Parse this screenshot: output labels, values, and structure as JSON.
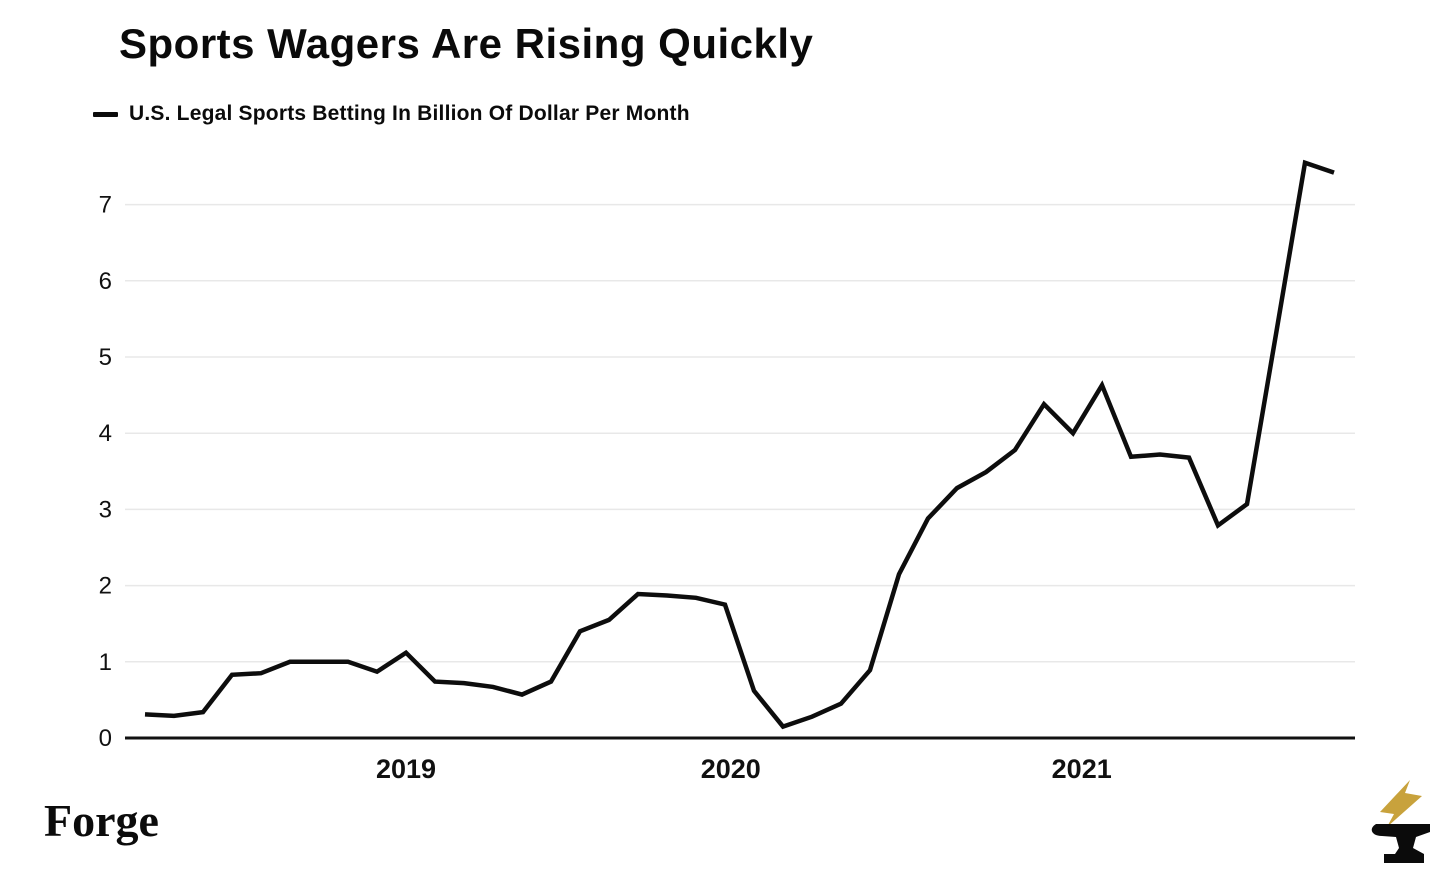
{
  "header": {
    "title": "Sports Wagers Are Rising Quickly",
    "legend": {
      "swatch_icon": "line-dash-swatch",
      "series_label": "U.S. Legal Sports Betting In Billion Of Dollar Per Month"
    }
  },
  "chart_data": {
    "type": "line",
    "title": "Sports Wagers Are Rising Quickly",
    "xlabel": "",
    "ylabel": "",
    "grid": "horizontal-only",
    "legend_position": "top-left",
    "ylim": [
      0,
      7.6
    ],
    "y_ticks": [
      0,
      1,
      2,
      3,
      4,
      5,
      6,
      7
    ],
    "x_ticks": [
      {
        "label": "2019",
        "month_index": 9.0
      },
      {
        "label": "2020",
        "month_index": 20.2
      },
      {
        "label": "2021",
        "month_index": 32.3
      }
    ],
    "x": [
      "2018-06",
      "2018-07",
      "2018-08",
      "2018-09",
      "2018-10",
      "2018-11",
      "2018-12",
      "2019-01",
      "2019-02",
      "2019-03",
      "2019-04",
      "2019-05",
      "2019-06",
      "2019-07",
      "2019-08",
      "2019-09",
      "2019-10",
      "2019-11",
      "2019-12",
      "2020-01",
      "2020-02",
      "2020-03",
      "2020-04",
      "2020-05",
      "2020-06",
      "2020-07",
      "2020-08",
      "2020-09",
      "2020-10",
      "2020-11",
      "2020-12",
      "2021-01",
      "2021-02",
      "2021-03",
      "2021-04",
      "2021-05",
      "2021-06",
      "2021-07",
      "2021-08",
      "2021-09",
      "2021-10",
      "2021-11"
    ],
    "series": [
      {
        "name": "U.S. Legal Sports Betting In Billion Of Dollar Per Month",
        "color": "#0d0d0d",
        "values": [
          0.31,
          0.29,
          0.34,
          0.83,
          0.85,
          1.0,
          1.0,
          1.0,
          0.87,
          1.12,
          0.74,
          0.72,
          0.67,
          0.57,
          0.74,
          1.4,
          1.55,
          1.89,
          1.87,
          1.84,
          1.75,
          0.62,
          0.15,
          0.28,
          0.45,
          0.89,
          2.15,
          2.88,
          3.28,
          3.49,
          3.78,
          4.38,
          4.0,
          4.63,
          3.69,
          3.72,
          3.68,
          2.79,
          3.07,
          5.3,
          7.55,
          7.42
        ]
      }
    ]
  },
  "footer": {
    "brand": "Forge",
    "logo_icon": "anvil-with-lightning-bolt-icon",
    "bolt_color": "#C8A23C",
    "anvil_color": "#0b0b0b"
  },
  "colors": {
    "background": "#ffffff",
    "line": "#0d0d0d",
    "grid": "#e8e8e8",
    "axis": "#111111",
    "text": "#111111"
  }
}
